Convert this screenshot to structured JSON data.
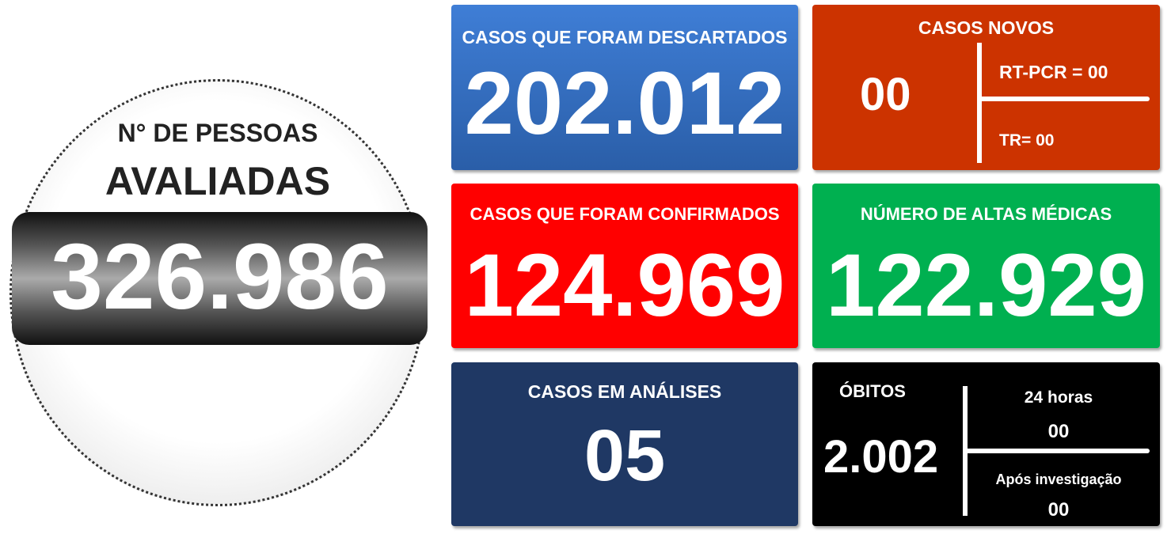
{
  "evaluated": {
    "label": "N° DE PESSOAS",
    "title": "AVALIADAS",
    "value": "326.986"
  },
  "discarded": {
    "title": "CASOS QUE FORAM DESCARTADOS",
    "value": "202.012"
  },
  "new_cases": {
    "title": "CASOS NOVOS",
    "value": "00",
    "rt_pcr": "RT-PCR = 00",
    "tr": "TR= 00"
  },
  "confirmed": {
    "title": "CASOS QUE FORAM CONFIRMADOS",
    "value": "124.969"
  },
  "discharged": {
    "title": "NÚMERO DE ALTAS MÉDICAS",
    "value": "122.929"
  },
  "under_analysis": {
    "title": "CASOS EM ANÁLISES",
    "value": "05"
  },
  "deaths": {
    "title": "ÓBITOS",
    "value": "2.002",
    "last24_label": "24 horas",
    "last24_value": "00",
    "after_label": "Após investigação",
    "after_value": "00"
  }
}
